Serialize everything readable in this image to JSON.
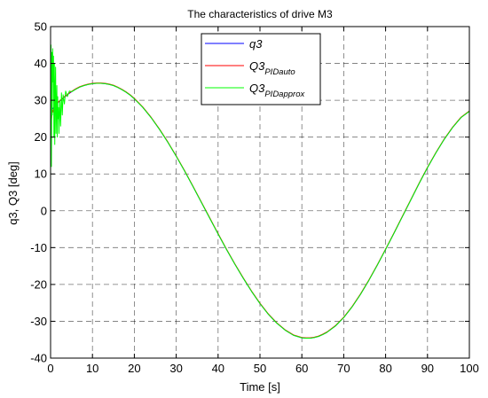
{
  "chart_data": {
    "type": "line",
    "title": "The characteristics of drive M3",
    "xlabel": "Time [s]",
    "ylabel": "q3, Q3 [deg]",
    "xlim": [
      0,
      100
    ],
    "ylim": [
      -40,
      50
    ],
    "xticks": [
      0,
      10,
      20,
      30,
      40,
      50,
      60,
      70,
      80,
      90,
      100
    ],
    "yticks": [
      -40,
      -30,
      -20,
      -10,
      0,
      10,
      20,
      30,
      40,
      50
    ],
    "grid": true,
    "legend_position": "top-center",
    "series": [
      {
        "name": "q3",
        "legend_main": "q3",
        "legend_sub": "",
        "color": "#0000ff",
        "x": [
          0,
          1,
          2,
          3,
          4,
          5,
          6,
          7,
          8,
          9,
          10,
          11,
          12,
          13,
          14,
          15,
          16,
          17,
          18,
          19,
          20,
          22,
          24,
          26,
          28,
          30,
          32,
          34,
          36,
          38,
          40,
          42,
          44,
          46,
          48,
          50,
          52,
          54,
          56,
          58,
          60,
          61,
          62,
          63,
          64,
          65,
          66,
          68,
          70,
          72,
          74,
          76,
          78,
          80,
          82,
          84,
          86,
          88,
          90,
          92,
          94,
          96,
          98,
          100
        ],
        "y": [
          27.0,
          28.4,
          29.6,
          30.6,
          31.5,
          32.3,
          33.0,
          33.6,
          34.0,
          34.3,
          34.5,
          34.6,
          34.6,
          34.5,
          34.3,
          34.0,
          33.5,
          32.9,
          32.2,
          31.4,
          30.4,
          28.1,
          25.3,
          22.1,
          18.6,
          14.8,
          10.8,
          6.6,
          2.3,
          -2.0,
          -6.3,
          -10.5,
          -14.5,
          -18.3,
          -21.9,
          -25.2,
          -28.1,
          -30.5,
          -32.4,
          -33.8,
          -34.5,
          -34.6,
          -34.6,
          -34.4,
          -34.1,
          -33.6,
          -33.0,
          -31.3,
          -29.0,
          -26.1,
          -22.7,
          -18.9,
          -14.8,
          -10.5,
          -6.1,
          -1.6,
          2.9,
          7.4,
          11.7,
          15.7,
          19.4,
          22.6,
          25.3,
          27.0
        ]
      },
      {
        "name": "Q3_PIDauto",
        "legend_main": "Q3",
        "legend_sub": "PIDauto",
        "color": "#ff0000",
        "x": [
          0,
          0.2,
          0.4,
          0.6,
          0.8,
          1,
          1.5,
          2,
          3,
          4,
          5,
          6,
          7,
          8,
          9,
          10,
          11,
          12,
          13,
          14,
          15,
          16,
          17,
          18,
          19,
          20,
          22,
          24,
          26,
          28,
          30,
          32,
          34,
          36,
          38,
          40,
          42,
          44,
          46,
          48,
          50,
          52,
          54,
          56,
          58,
          60,
          61,
          62,
          63,
          64,
          65,
          66,
          68,
          70,
          72,
          74,
          76,
          78,
          80,
          82,
          84,
          86,
          88,
          90,
          92,
          94,
          96,
          98,
          100
        ],
        "y": [
          27.0,
          24.5,
          27.5,
          26.8,
          28.2,
          28.6,
          29.0,
          29.7,
          30.7,
          31.6,
          32.4,
          33.1,
          33.7,
          34.1,
          34.4,
          34.6,
          34.7,
          34.7,
          34.6,
          34.4,
          34.1,
          33.6,
          33.0,
          32.3,
          31.5,
          30.5,
          28.2,
          25.4,
          22.2,
          18.7,
          14.9,
          10.9,
          6.7,
          2.4,
          -1.9,
          -6.2,
          -10.4,
          -14.4,
          -18.2,
          -21.8,
          -25.1,
          -28.0,
          -30.4,
          -32.3,
          -33.7,
          -34.4,
          -34.5,
          -34.5,
          -34.3,
          -34.0,
          -33.5,
          -32.9,
          -31.2,
          -28.9,
          -26.0,
          -22.6,
          -18.8,
          -14.7,
          -10.4,
          -6.0,
          -1.5,
          3.0,
          7.5,
          11.8,
          15.8,
          19.5,
          22.7,
          25.4,
          27.1
        ]
      },
      {
        "name": "Q3_PIDapprox",
        "legend_main": "Q3",
        "legend_sub": "PIDapprox",
        "color": "#00ff00",
        "x": [
          0,
          0.1,
          0.2,
          0.3,
          0.4,
          0.5,
          0.6,
          0.7,
          0.8,
          0.9,
          1.0,
          1.1,
          1.2,
          1.3,
          1.4,
          1.5,
          1.6,
          1.7,
          1.8,
          1.9,
          2.0,
          2.2,
          2.4,
          2.6,
          2.8,
          3.0,
          3.3,
          3.6,
          4.0,
          4.5,
          5,
          6,
          7,
          8,
          9,
          10,
          11,
          12,
          13,
          14,
          15,
          16,
          17,
          18,
          19,
          20,
          22,
          24,
          26,
          28,
          30,
          32,
          34,
          36,
          38,
          40,
          42,
          44,
          46,
          48,
          50,
          52,
          54,
          56,
          58,
          60,
          61,
          62,
          63,
          64,
          65,
          66,
          68,
          70,
          72,
          74,
          76,
          78,
          80,
          82,
          84,
          86,
          88,
          90,
          92,
          94,
          96,
          98,
          100
        ],
        "y": [
          8.0,
          45.0,
          12.0,
          43.0,
          26.0,
          44.0,
          35.0,
          42.0,
          20.0,
          40.0,
          18.0,
          33.0,
          39.0,
          21.0,
          29.0,
          34.0,
          20.0,
          31.0,
          25.0,
          28.0,
          21.0,
          30.0,
          23.0,
          32.0,
          26.0,
          31.5,
          29.0,
          32.5,
          31.0,
          32.5,
          32.3,
          33.0,
          33.6,
          34.0,
          34.3,
          34.5,
          34.6,
          34.6,
          34.5,
          34.3,
          34.0,
          33.5,
          32.9,
          32.2,
          31.4,
          30.4,
          28.1,
          25.3,
          22.1,
          18.6,
          14.8,
          10.8,
          6.6,
          2.3,
          -2.0,
          -6.3,
          -10.5,
          -14.5,
          -18.3,
          -21.9,
          -25.2,
          -28.1,
          -30.5,
          -32.4,
          -33.8,
          -34.5,
          -34.6,
          -34.6,
          -34.4,
          -34.1,
          -33.6,
          -33.0,
          -31.3,
          -29.0,
          -26.1,
          -22.7,
          -18.9,
          -14.8,
          -10.5,
          -6.1,
          -1.6,
          2.9,
          7.4,
          11.7,
          15.7,
          19.4,
          22.6,
          25.3,
          27.0
        ]
      }
    ]
  }
}
